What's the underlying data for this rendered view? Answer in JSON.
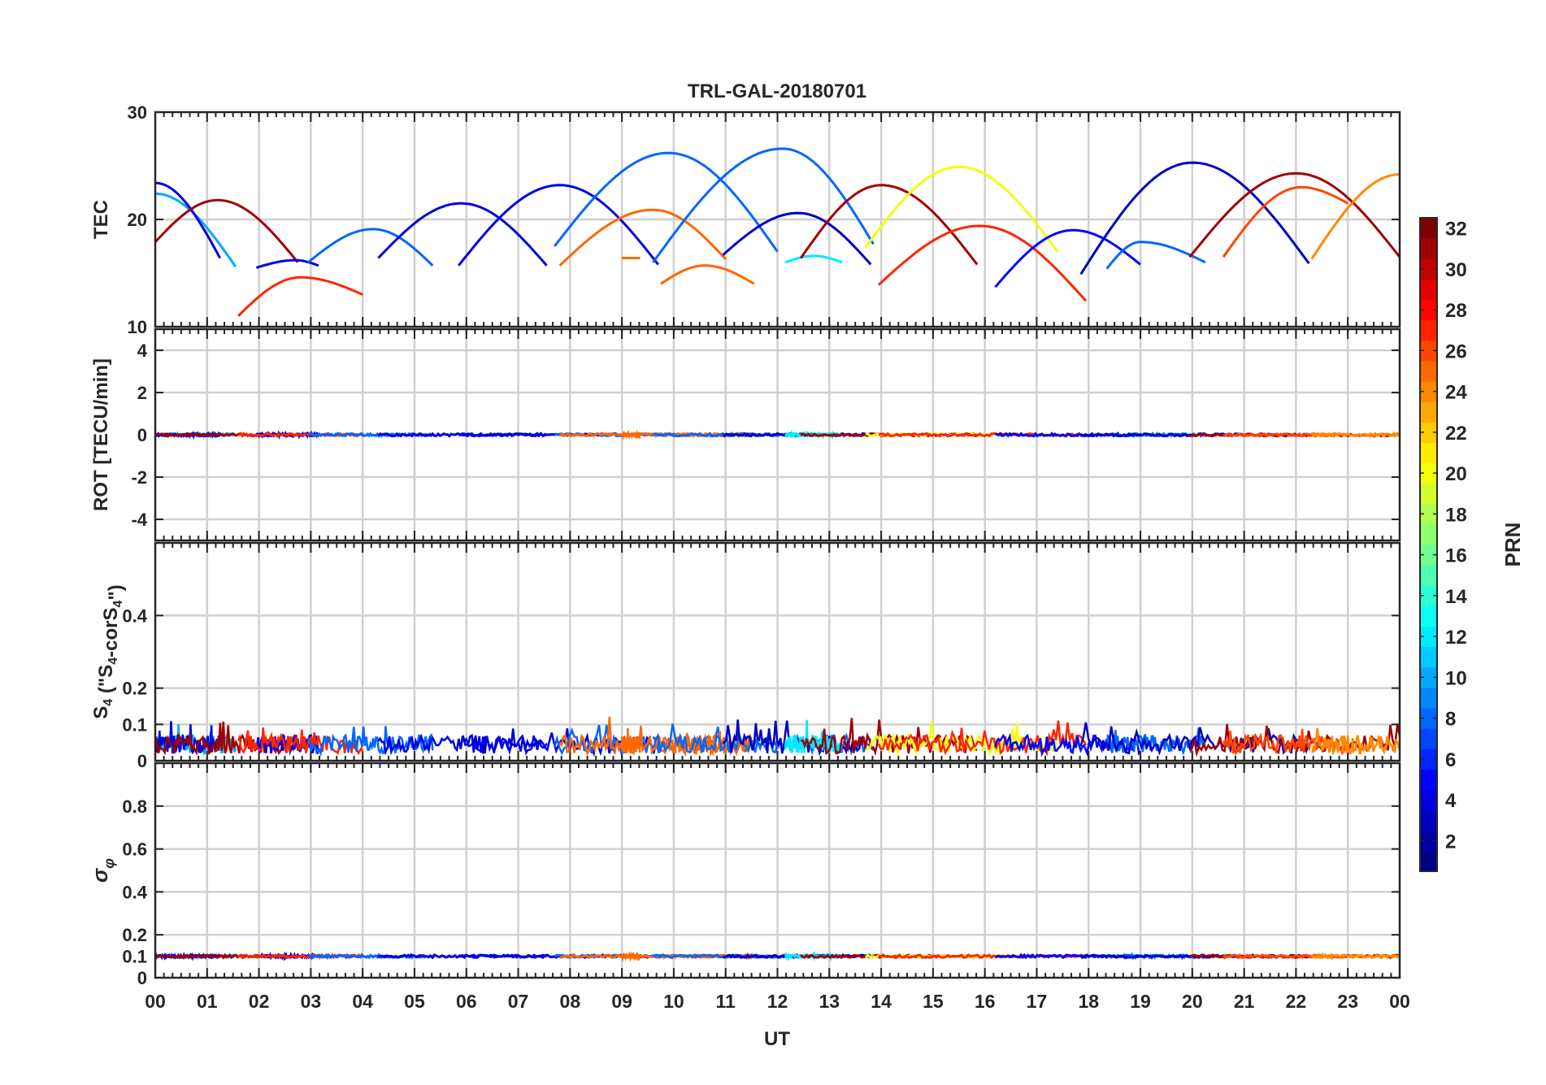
{
  "chart_data": {
    "type": "line",
    "title": "TRL-GAL-20180701",
    "xlabel": "UT",
    "x_range": [
      0,
      24
    ],
    "x_tick_labels": [
      "00",
      "01",
      "02",
      "03",
      "04",
      "05",
      "06",
      "07",
      "08",
      "09",
      "10",
      "11",
      "12",
      "13",
      "14",
      "15",
      "16",
      "17",
      "18",
      "19",
      "20",
      "21",
      "22",
      "23",
      "00"
    ],
    "grid": true,
    "panels": [
      {
        "ylabel": "TEC",
        "ylim": [
          10,
          30
        ],
        "y_ticks": [
          10,
          20,
          30
        ]
      },
      {
        "ylabel": "ROT [TECU/min]",
        "ylim": [
          -5,
          5
        ],
        "y_ticks": [
          -4,
          -2,
          0,
          2,
          4
        ]
      },
      {
        "ylabel_main": "S",
        "ylabel_sub1": "4",
        "ylabel_mid": " (\"S",
        "ylabel_sub2": "4",
        "ylabel_mid2": "-corS",
        "ylabel_sub3": "4",
        "ylabel_end": "\")",
        "ylim": [
          0,
          0.6
        ],
        "y_ticks": [
          0,
          0.1,
          0.2,
          0.4
        ]
      },
      {
        "ylabel_main": "σ",
        "ylabel_sub": "φ",
        "ylim": [
          0,
          1
        ],
        "y_ticks": [
          0,
          0.1,
          0.2,
          0.4,
          0.6,
          0.8
        ]
      }
    ],
    "colorbar": {
      "label": "PRN",
      "range": [
        1,
        32
      ],
      "tick_labels": [
        "2",
        "4",
        "6",
        "8",
        "10",
        "12",
        "14",
        "16",
        "18",
        "20",
        "22",
        "24",
        "26",
        "28",
        "30",
        "32"
      ],
      "colormap": "jet"
    },
    "tec_arcs": [
      {
        "prn": 10,
        "start": 0.0,
        "end": 1.55,
        "v_start": 22.4,
        "v_end": 15.6,
        "peak_t": 0.0,
        "peak_v": 22.4
      },
      {
        "prn": 4,
        "start": 0.0,
        "end": 1.25,
        "v_start": 23.4,
        "v_end": 16.4,
        "peak_t": 0.0,
        "peak_v": 23.4
      },
      {
        "prn": 31,
        "start": 0.0,
        "end": 2.75,
        "v_start": 17.9,
        "v_end": 16.0,
        "peak_t": 1.2,
        "peak_v": 21.8
      },
      {
        "prn": 4,
        "start": 1.95,
        "end": 3.15,
        "v_start": 15.5,
        "v_end": 15.7,
        "peak_t": 2.7,
        "peak_v": 16.2
      },
      {
        "prn": 27,
        "start": 1.6,
        "end": 4.0,
        "v_start": 11.0,
        "v_end": 13.0,
        "peak_t": 2.8,
        "peak_v": 14.6
      },
      {
        "prn": 8,
        "start": 2.95,
        "end": 5.35,
        "v_start": 16.0,
        "v_end": 15.7,
        "peak_t": 4.2,
        "peak_v": 19.1
      },
      {
        "prn": 4,
        "start": 4.3,
        "end": 7.55,
        "v_start": 16.4,
        "v_end": 15.7,
        "peak_t": 5.9,
        "peak_v": 21.5
      },
      {
        "prn": 4,
        "start": 5.85,
        "end": 9.7,
        "v_start": 15.7,
        "v_end": 15.8,
        "peak_t": 7.8,
        "peak_v": 23.2
      },
      {
        "prn": 8,
        "start": 7.7,
        "end": 12.0,
        "v_start": 17.5,
        "v_end": 17.0,
        "peak_t": 9.9,
        "peak_v": 26.2
      },
      {
        "prn": 25,
        "start": 7.8,
        "end": 11.0,
        "v_start": 15.7,
        "v_end": 16.3,
        "peak_t": 9.6,
        "peak_v": 20.9
      },
      {
        "prn": 25,
        "start": 9.0,
        "end": 9.35,
        "v_start": 16.4,
        "v_end": 16.4,
        "peak_t": 9.2,
        "peak_v": 16.4
      },
      {
        "prn": 25,
        "start": 9.75,
        "end": 11.55,
        "v_start": 14.0,
        "v_end": 14.0,
        "peak_t": 10.6,
        "peak_v": 15.7
      },
      {
        "prn": 8,
        "start": 9.6,
        "end": 13.85,
        "v_start": 16.0,
        "v_end": 17.7,
        "peak_t": 12.1,
        "peak_v": 26.6
      },
      {
        "prn": 3,
        "start": 10.95,
        "end": 13.8,
        "v_start": 16.7,
        "v_end": 15.8,
        "peak_t": 12.4,
        "peak_v": 20.6
      },
      {
        "prn": 12,
        "start": 12.15,
        "end": 13.25,
        "v_start": 16.0,
        "v_end": 16.0,
        "peak_t": 12.7,
        "peak_v": 16.6
      },
      {
        "prn": 31,
        "start": 12.45,
        "end": 15.85,
        "v_start": 16.4,
        "v_end": 15.8,
        "peak_t": 14.0,
        "peak_v": 23.2
      },
      {
        "prn": 20,
        "start": 13.7,
        "end": 17.4,
        "v_start": 17.4,
        "v_end": 17.0,
        "peak_t": 15.5,
        "peak_v": 24.9
      },
      {
        "prn": 27,
        "start": 13.95,
        "end": 17.95,
        "v_start": 13.9,
        "v_end": 12.4,
        "peak_t": 15.9,
        "peak_v": 19.4
      },
      {
        "prn": 5,
        "start": 16.2,
        "end": 19.0,
        "v_start": 13.7,
        "v_end": 15.8,
        "peak_t": 17.7,
        "peak_v": 19.0
      },
      {
        "prn": 8,
        "start": 18.35,
        "end": 20.25,
        "v_start": 15.4,
        "v_end": 16.0,
        "peak_t": 19.0,
        "peak_v": 17.9
      },
      {
        "prn": 3,
        "start": 17.85,
        "end": 22.25,
        "v_start": 14.9,
        "v_end": 15.9,
        "peak_t": 20.0,
        "peak_v": 25.3
      },
      {
        "prn": 31,
        "start": 19.95,
        "end": 24.0,
        "v_start": 16.5,
        "v_end": 16.5,
        "peak_t": 22.0,
        "peak_v": 24.3
      },
      {
        "prn": 26,
        "start": 20.6,
        "end": 23.0,
        "v_start": 16.5,
        "v_end": 21.5,
        "peak_t": 22.1,
        "peak_v": 23.0
      },
      {
        "prn": 24,
        "start": 22.3,
        "end": 24.0,
        "v_start": 16.3,
        "v_end": 24.2,
        "peak_t": 24.0,
        "peak_v": 24.2
      }
    ]
  }
}
